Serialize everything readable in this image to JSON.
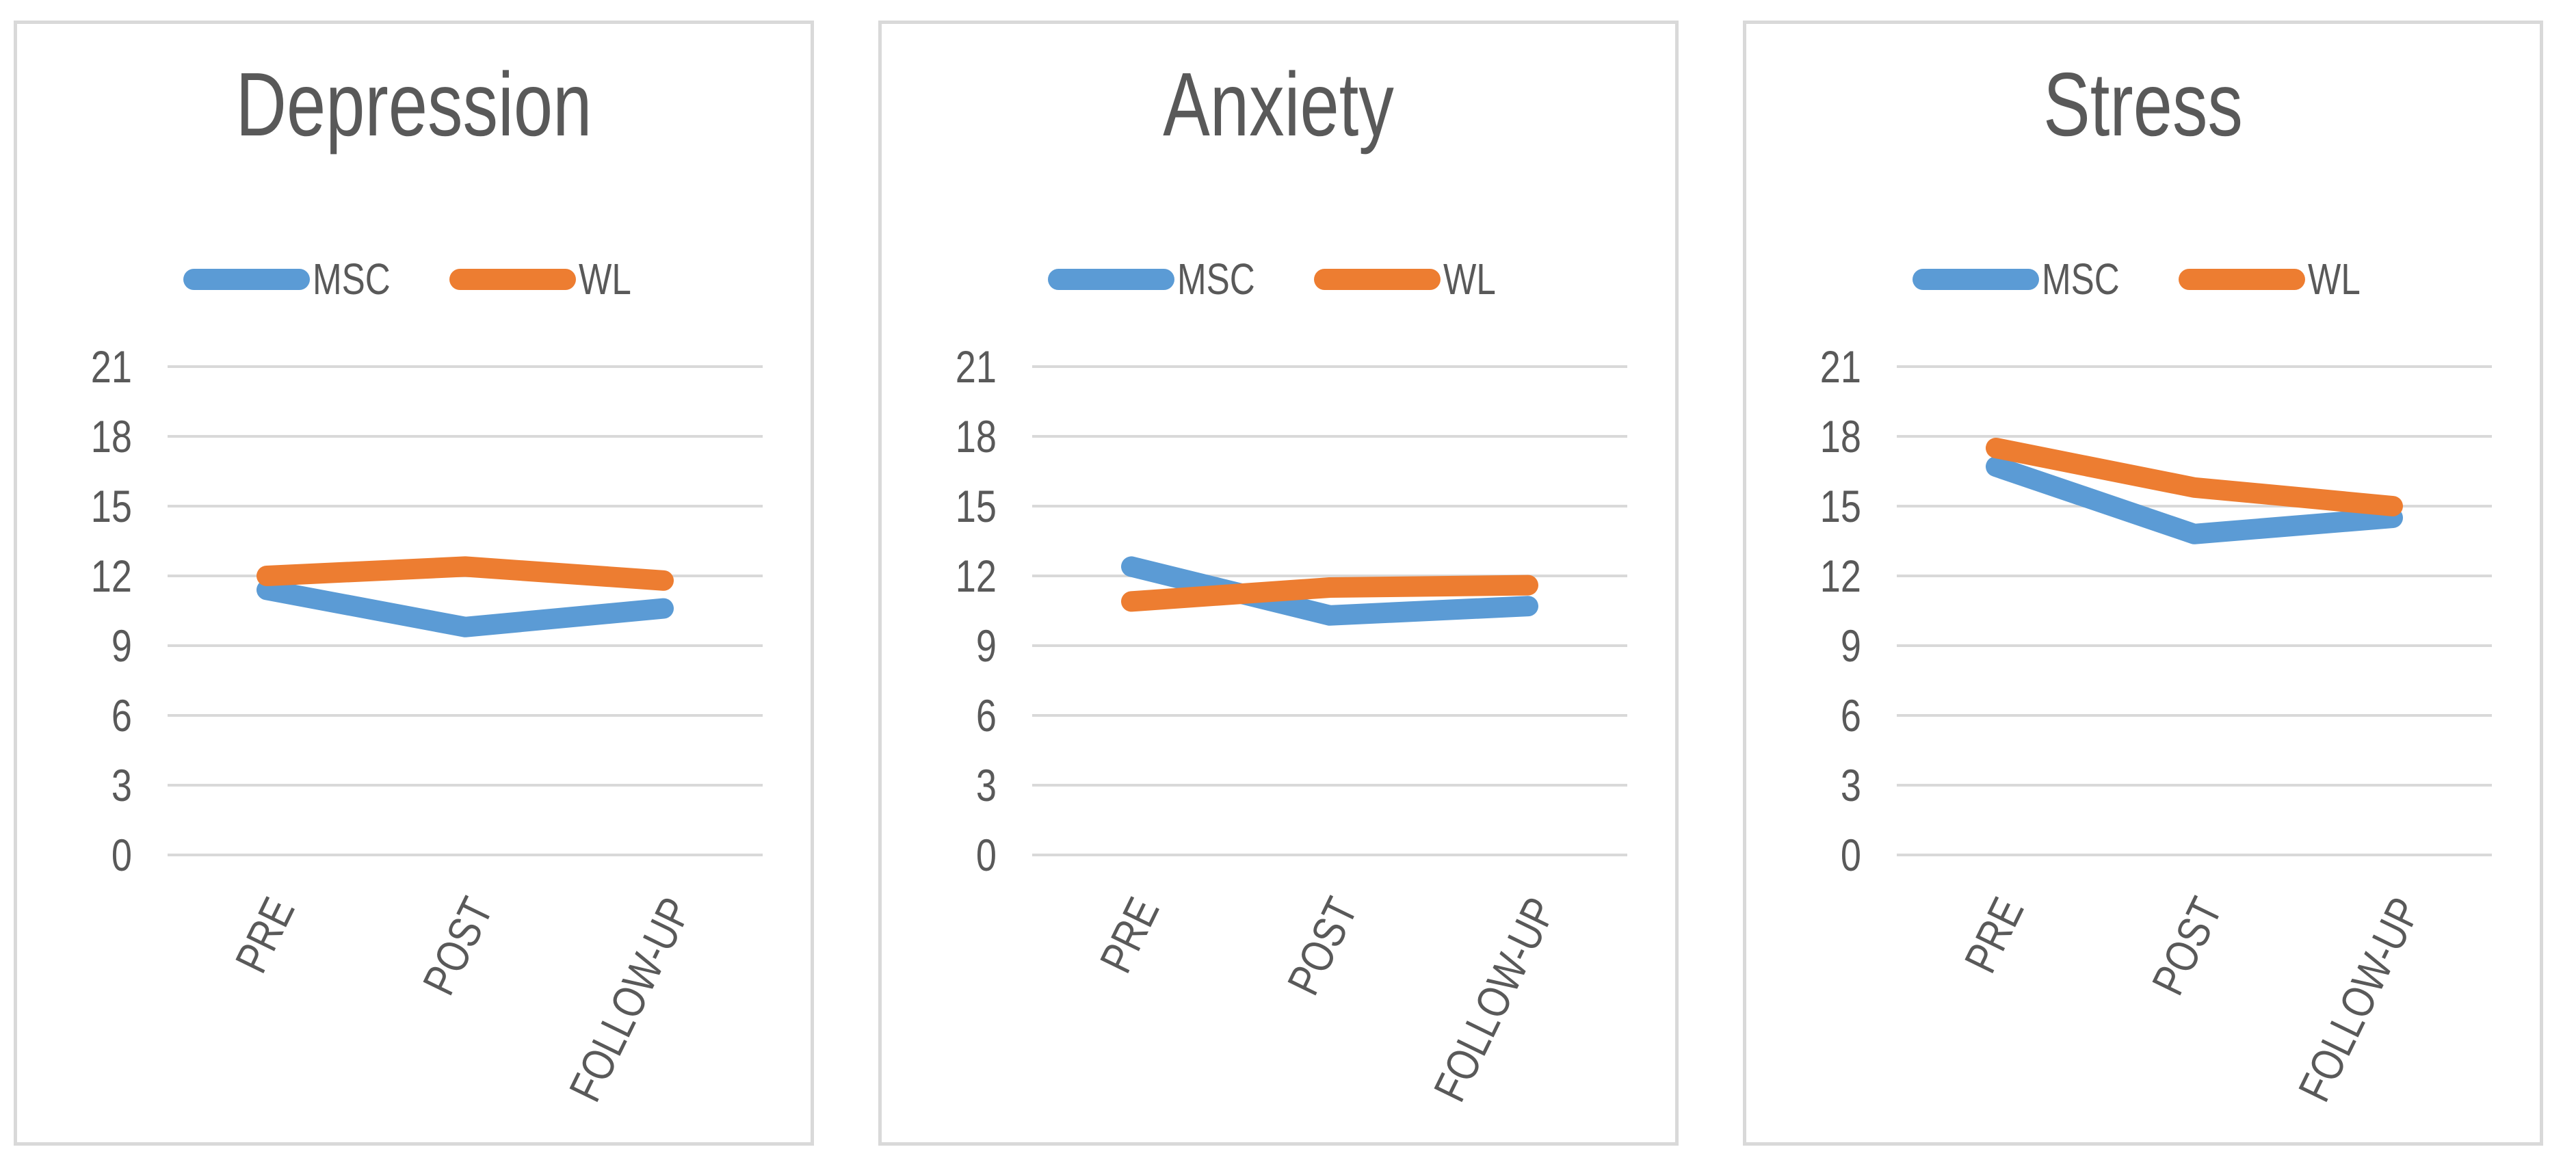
{
  "colors": {
    "msc": "#5B9BD5",
    "wl": "#ED7D31",
    "grid": "#D9D9D9",
    "text": "#595959",
    "panel_border": "#D9D9D9",
    "background": "#FFFFFF"
  },
  "legend": {
    "items": [
      {
        "label": "MSC",
        "color_key": "msc"
      },
      {
        "label": "WL",
        "color_key": "wl"
      }
    ],
    "position": "top"
  },
  "chart_data": [
    {
      "type": "line",
      "title": "Depression",
      "categories": [
        "PRE",
        "POST",
        "FOLLOW-UP"
      ],
      "yticks": [
        21,
        18,
        15,
        12,
        9,
        6,
        3,
        0
      ],
      "ylim": [
        0,
        21
      ],
      "grid": true,
      "legend_position": "top",
      "series": [
        {
          "name": "MSC",
          "color_key": "msc",
          "values": [
            11.4,
            9.8,
            10.6
          ]
        },
        {
          "name": "WL",
          "color_key": "wl",
          "values": [
            12.0,
            12.4,
            11.8
          ]
        }
      ]
    },
    {
      "type": "line",
      "title": "Anxiety",
      "categories": [
        "PRE",
        "POST",
        "FOLLOW-UP"
      ],
      "yticks": [
        21,
        18,
        15,
        12,
        9,
        6,
        3,
        0
      ],
      "ylim": [
        0,
        21
      ],
      "grid": true,
      "legend_position": "top",
      "series": [
        {
          "name": "MSC",
          "color_key": "msc",
          "values": [
            12.4,
            10.3,
            10.7
          ]
        },
        {
          "name": "WL",
          "color_key": "wl",
          "values": [
            10.9,
            11.5,
            11.6
          ]
        }
      ]
    },
    {
      "type": "line",
      "title": "Stress",
      "categories": [
        "PRE",
        "POST",
        "FOLLOW-UP"
      ],
      "yticks": [
        21,
        18,
        15,
        12,
        9,
        6,
        3,
        0
      ],
      "ylim": [
        0,
        21
      ],
      "grid": true,
      "legend_position": "top",
      "series": [
        {
          "name": "MSC",
          "color_key": "msc",
          "values": [
            16.7,
            13.8,
            14.5
          ]
        },
        {
          "name": "WL",
          "color_key": "wl",
          "values": [
            17.5,
            15.8,
            15.0
          ]
        }
      ]
    }
  ]
}
